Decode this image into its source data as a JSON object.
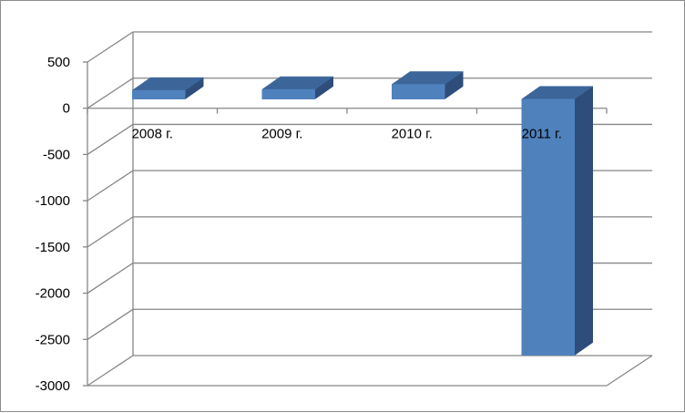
{
  "chart_data": {
    "type": "bar",
    "title": "",
    "xlabel": "",
    "ylabel": "",
    "categories": [
      "2008 г.",
      "2009 г.",
      "2010 г.",
      "2011 г."
    ],
    "series": [
      {
        "values": [
          95,
          105,
          160,
          -2770
        ]
      }
    ],
    "ylim": [
      -3000,
      500
    ],
    "yticks": [
      500,
      0,
      -500,
      -1000,
      -1500,
      -2000,
      -2500,
      -3000
    ],
    "grid": true,
    "legend": "none",
    "colors": {
      "front": "#4f81bd",
      "top": "#3c6699",
      "side": "#2e4d7a",
      "grid": "#868686"
    }
  }
}
